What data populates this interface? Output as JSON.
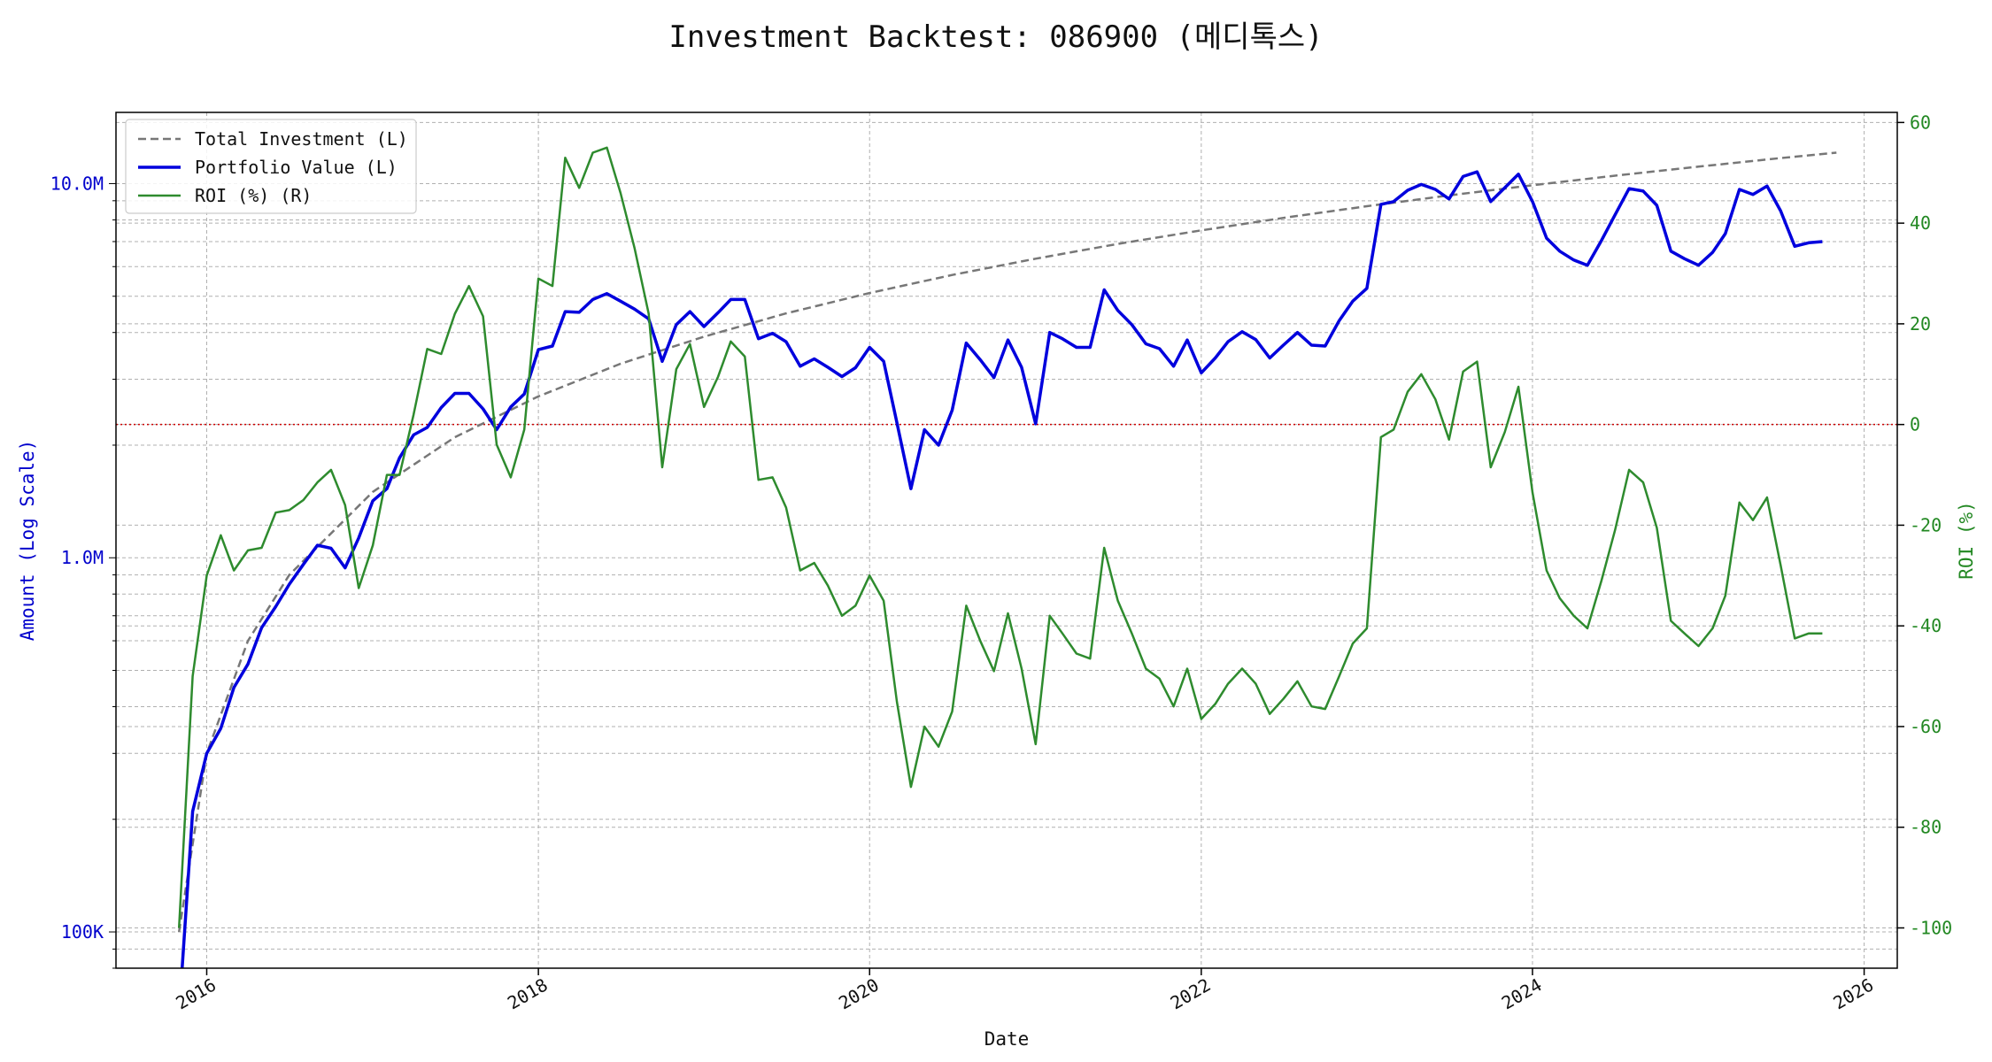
{
  "chart_data": {
    "type": "line",
    "title": "Investment Backtest: 086900 (메디톡스)",
    "xlabel": "Date",
    "ylabel_left": "Amount (Log Scale)",
    "ylabel_right": "ROI (%)",
    "x_ticks": [
      "2016",
      "2018",
      "2020",
      "2022",
      "2024",
      "2026"
    ],
    "y_left_scale": "log",
    "y_left_ticks": [
      "100K",
      "1.0M",
      "10.0M"
    ],
    "y_left_range": [
      80000,
      15500000
    ],
    "y_right_ticks": [
      "-100",
      "-80",
      "-60",
      "-40",
      "-20",
      "0",
      "20",
      "40",
      "60"
    ],
    "y_right_range": [
      -108,
      62
    ],
    "x_range": [
      "2015-06-15",
      "2026-03-15"
    ],
    "grid": true,
    "legend_position": "top-left",
    "zero_reference_line": {
      "axis": "right",
      "value": 0,
      "color": "#cc0000"
    },
    "colors": {
      "total": "#777777",
      "portfolio": "#0000dd",
      "roi": "#2e8b2e",
      "left_axis": "#0000cc",
      "right_axis": "#228822"
    },
    "series": [
      {
        "name": "Total Investment (L)",
        "axis": "left",
        "style": "dashed",
        "points": [
          [
            "2015-11-01",
            100000
          ],
          [
            "2016-01-01",
            300000
          ],
          [
            "2016-04-01",
            600000
          ],
          [
            "2016-07-01",
            900000
          ],
          [
            "2017-01-01",
            1500000
          ],
          [
            "2017-07-01",
            2100000
          ],
          [
            "2018-01-01",
            2700000
          ],
          [
            "2018-07-01",
            3300000
          ],
          [
            "2019-01-01",
            3900000
          ],
          [
            "2019-07-01",
            4500000
          ],
          [
            "2020-01-01",
            5100000
          ],
          [
            "2020-07-01",
            5700000
          ],
          [
            "2021-01-01",
            6300000
          ],
          [
            "2021-07-01",
            6900000
          ],
          [
            "2022-01-01",
            7500000
          ],
          [
            "2022-07-01",
            8100000
          ],
          [
            "2023-01-01",
            8700000
          ],
          [
            "2023-07-01",
            9300000
          ],
          [
            "2024-01-01",
            9900000
          ],
          [
            "2024-07-01",
            10500000
          ],
          [
            "2025-01-01",
            11100000
          ],
          [
            "2025-07-01",
            11700000
          ],
          [
            "2025-11-01",
            12100000
          ]
        ]
      },
      {
        "name": "Portfolio Value (L)",
        "axis": "left",
        "style": "solid",
        "points": [
          [
            "2015-11-01",
            60000
          ],
          [
            "2015-12-01",
            210000
          ],
          [
            "2016-01-01",
            300000
          ],
          [
            "2016-02-01",
            350000
          ],
          [
            "2016-03-01",
            450000
          ],
          [
            "2016-04-01",
            520000
          ],
          [
            "2016-05-01",
            650000
          ],
          [
            "2016-06-01",
            740000
          ],
          [
            "2016-07-01",
            850000
          ],
          [
            "2016-08-01",
            960000
          ],
          [
            "2016-09-01",
            1080000
          ],
          [
            "2016-10-01",
            1060000
          ],
          [
            "2016-11-01",
            940000
          ],
          [
            "2016-12-01",
            1130000
          ],
          [
            "2017-01-01",
            1420000
          ],
          [
            "2017-02-01",
            1530000
          ],
          [
            "2017-03-01",
            1850000
          ],
          [
            "2017-04-01",
            2130000
          ],
          [
            "2017-05-01",
            2230000
          ],
          [
            "2017-06-01",
            2520000
          ],
          [
            "2017-07-01",
            2750000
          ],
          [
            "2017-08-01",
            2750000
          ],
          [
            "2017-09-01",
            2500000
          ],
          [
            "2017-10-01",
            2200000
          ],
          [
            "2017-11-01",
            2530000
          ],
          [
            "2017-12-01",
            2740000
          ],
          [
            "2018-01-01",
            3600000
          ],
          [
            "2018-02-01",
            3680000
          ],
          [
            "2018-03-01",
            4550000
          ],
          [
            "2018-04-01",
            4530000
          ],
          [
            "2018-05-01",
            4900000
          ],
          [
            "2018-06-01",
            5080000
          ],
          [
            "2018-07-01",
            4850000
          ],
          [
            "2018-08-01",
            4620000
          ],
          [
            "2018-09-01",
            4350000
          ],
          [
            "2018-10-01",
            3350000
          ],
          [
            "2018-11-01",
            4200000
          ],
          [
            "2018-12-01",
            4550000
          ],
          [
            "2019-01-01",
            4150000
          ],
          [
            "2019-02-01",
            4520000
          ],
          [
            "2019-03-01",
            4900000
          ],
          [
            "2019-04-01",
            4900000
          ],
          [
            "2019-05-01",
            3850000
          ],
          [
            "2019-06-01",
            3980000
          ],
          [
            "2019-07-01",
            3780000
          ],
          [
            "2019-08-01",
            3250000
          ],
          [
            "2019-09-01",
            3400000
          ],
          [
            "2019-10-01",
            3230000
          ],
          [
            "2019-11-01",
            3050000
          ],
          [
            "2019-12-01",
            3220000
          ],
          [
            "2020-01-01",
            3650000
          ],
          [
            "2020-02-01",
            3350000
          ],
          [
            "2020-03-01",
            2300000
          ],
          [
            "2020-04-01",
            1530000
          ],
          [
            "2020-05-01",
            2200000
          ],
          [
            "2020-06-01",
            2000000
          ],
          [
            "2020-07-01",
            2480000
          ],
          [
            "2020-08-01",
            3750000
          ],
          [
            "2020-09-01",
            3380000
          ],
          [
            "2020-10-01",
            3030000
          ],
          [
            "2020-11-01",
            3820000
          ],
          [
            "2020-12-01",
            3230000
          ],
          [
            "2021-01-01",
            2280000
          ],
          [
            "2021-02-01",
            4000000
          ],
          [
            "2021-03-01",
            3850000
          ],
          [
            "2021-04-01",
            3650000
          ],
          [
            "2021-05-01",
            3650000
          ],
          [
            "2021-06-01",
            5200000
          ],
          [
            "2021-07-01",
            4580000
          ],
          [
            "2021-08-01",
            4200000
          ],
          [
            "2021-09-01",
            3730000
          ],
          [
            "2021-10-01",
            3620000
          ],
          [
            "2021-11-01",
            3250000
          ],
          [
            "2021-12-01",
            3820000
          ],
          [
            "2022-01-01",
            3120000
          ],
          [
            "2022-02-01",
            3420000
          ],
          [
            "2022-03-01",
            3780000
          ],
          [
            "2022-04-01",
            4020000
          ],
          [
            "2022-05-01",
            3830000
          ],
          [
            "2022-06-01",
            3420000
          ],
          [
            "2022-07-01",
            3700000
          ],
          [
            "2022-08-01",
            4000000
          ],
          [
            "2022-09-01",
            3700000
          ],
          [
            "2022-10-01",
            3680000
          ],
          [
            "2022-11-01",
            4300000
          ],
          [
            "2022-12-01",
            4850000
          ],
          [
            "2023-01-01",
            5250000
          ],
          [
            "2023-02-01",
            8800000
          ],
          [
            "2023-03-01",
            8950000
          ],
          [
            "2023-04-01",
            9600000
          ],
          [
            "2023-05-01",
            9950000
          ],
          [
            "2023-06-01",
            9650000
          ],
          [
            "2023-07-01",
            9100000
          ],
          [
            "2023-08-01",
            10450000
          ],
          [
            "2023-09-01",
            10750000
          ],
          [
            "2023-10-01",
            8950000
          ],
          [
            "2023-11-01",
            9750000
          ],
          [
            "2023-12-01",
            10600000
          ],
          [
            "2024-01-01",
            8950000
          ],
          [
            "2024-02-01",
            7150000
          ],
          [
            "2024-03-01",
            6600000
          ],
          [
            "2024-04-01",
            6250000
          ],
          [
            "2024-05-01",
            6050000
          ],
          [
            "2024-06-01",
            7050000
          ],
          [
            "2024-07-01",
            8250000
          ],
          [
            "2024-08-01",
            9700000
          ],
          [
            "2024-09-01",
            9550000
          ],
          [
            "2024-10-01",
            8750000
          ],
          [
            "2024-11-01",
            6600000
          ],
          [
            "2024-12-01",
            6300000
          ],
          [
            "2025-01-01",
            6050000
          ],
          [
            "2025-02-01",
            6550000
          ],
          [
            "2025-03-01",
            7350000
          ],
          [
            "2025-04-01",
            9650000
          ],
          [
            "2025-05-01",
            9350000
          ],
          [
            "2025-06-01",
            9850000
          ],
          [
            "2025-07-01",
            8450000
          ],
          [
            "2025-08-01",
            6800000
          ],
          [
            "2025-09-01",
            6950000
          ],
          [
            "2025-10-01",
            7000000
          ]
        ]
      },
      {
        "name": "ROI (%) (R)",
        "axis": "right",
        "style": "solid",
        "points": [
          [
            "2015-11-01",
            -100
          ],
          [
            "2015-12-01",
            -50
          ],
          [
            "2016-01-01",
            -30
          ],
          [
            "2016-02-01",
            -22
          ],
          [
            "2016-03-01",
            -29
          ],
          [
            "2016-04-01",
            -25
          ],
          [
            "2016-05-01",
            -24.5
          ],
          [
            "2016-06-01",
            -17.5
          ],
          [
            "2016-07-01",
            -17
          ],
          [
            "2016-08-01",
            -15
          ],
          [
            "2016-09-01",
            -11.5
          ],
          [
            "2016-10-01",
            -9
          ],
          [
            "2016-11-01",
            -16
          ],
          [
            "2016-12-01",
            -32.5
          ],
          [
            "2017-01-01",
            -24
          ],
          [
            "2017-02-01",
            -10
          ],
          [
            "2017-03-01",
            -10
          ],
          [
            "2017-04-01",
            2
          ],
          [
            "2017-05-01",
            15
          ],
          [
            "2017-06-01",
            14
          ],
          [
            "2017-07-01",
            22
          ],
          [
            "2017-08-01",
            27.5
          ],
          [
            "2017-09-01",
            21.5
          ],
          [
            "2017-10-01",
            -4
          ],
          [
            "2017-11-01",
            -10.5
          ],
          [
            "2017-12-01",
            -1
          ],
          [
            "2018-01-01",
            29
          ],
          [
            "2018-02-01",
            27.5
          ],
          [
            "2018-03-01",
            53
          ],
          [
            "2018-04-01",
            47
          ],
          [
            "2018-05-01",
            54
          ],
          [
            "2018-06-01",
            55
          ],
          [
            "2018-07-01",
            46
          ],
          [
            "2018-08-01",
            35
          ],
          [
            "2018-09-01",
            22
          ],
          [
            "2018-10-01",
            -8.5
          ],
          [
            "2018-11-01",
            11
          ],
          [
            "2018-12-01",
            16
          ],
          [
            "2019-01-01",
            3.5
          ],
          [
            "2019-02-01",
            9.5
          ],
          [
            "2019-03-01",
            16.5
          ],
          [
            "2019-04-01",
            13.5
          ],
          [
            "2019-05-01",
            -11
          ],
          [
            "2019-06-01",
            -10.5
          ],
          [
            "2019-07-01",
            -16.5
          ],
          [
            "2019-08-01",
            -29
          ],
          [
            "2019-09-01",
            -27.5
          ],
          [
            "2019-10-01",
            -32
          ],
          [
            "2019-11-01",
            -38
          ],
          [
            "2019-12-01",
            -36
          ],
          [
            "2020-01-01",
            -30
          ],
          [
            "2020-02-01",
            -35
          ],
          [
            "2020-03-01",
            -55
          ],
          [
            "2020-04-01",
            -72
          ],
          [
            "2020-05-01",
            -60
          ],
          [
            "2020-06-01",
            -64
          ],
          [
            "2020-07-01",
            -57
          ],
          [
            "2020-08-01",
            -36
          ],
          [
            "2020-09-01",
            -43
          ],
          [
            "2020-10-01",
            -49
          ],
          [
            "2020-11-01",
            -37.5
          ],
          [
            "2020-12-01",
            -48.5
          ],
          [
            "2021-01-01",
            -63.5
          ],
          [
            "2021-02-01",
            -38
          ],
          [
            "2021-03-01",
            -41.5
          ],
          [
            "2021-04-01",
            -45.5
          ],
          [
            "2021-05-01",
            -46.5
          ],
          [
            "2021-06-01",
            -24.5
          ],
          [
            "2021-07-01",
            -35
          ],
          [
            "2021-08-01",
            -41.5
          ],
          [
            "2021-09-01",
            -48.5
          ],
          [
            "2021-10-01",
            -50.5
          ],
          [
            "2021-11-01",
            -56
          ],
          [
            "2021-12-01",
            -48.5
          ],
          [
            "2022-01-01",
            -58.5
          ],
          [
            "2022-02-01",
            -55.5
          ],
          [
            "2022-03-01",
            -51.5
          ],
          [
            "2022-04-01",
            -48.5
          ],
          [
            "2022-05-01",
            -51.5
          ],
          [
            "2022-06-01",
            -57.5
          ],
          [
            "2022-07-01",
            -54.5
          ],
          [
            "2022-08-01",
            -51
          ],
          [
            "2022-09-01",
            -56
          ],
          [
            "2022-10-01",
            -56.5
          ],
          [
            "2022-11-01",
            -50
          ],
          [
            "2022-12-01",
            -43.5
          ],
          [
            "2023-01-01",
            -40.5
          ],
          [
            "2023-02-01",
            -2.5
          ],
          [
            "2023-03-01",
            -1
          ],
          [
            "2023-04-01",
            6.5
          ],
          [
            "2023-05-01",
            10
          ],
          [
            "2023-06-01",
            5
          ],
          [
            "2023-07-01",
            -3
          ],
          [
            "2023-08-01",
            10.5
          ],
          [
            "2023-09-01",
            12.5
          ],
          [
            "2023-10-01",
            -8.5
          ],
          [
            "2023-11-01",
            -1.5
          ],
          [
            "2023-12-01",
            7.5
          ],
          [
            "2024-01-01",
            -13.5
          ],
          [
            "2024-02-01",
            -29
          ],
          [
            "2024-03-01",
            -34.5
          ],
          [
            "2024-04-01",
            -38
          ],
          [
            "2024-05-01",
            -40.5
          ],
          [
            "2024-06-01",
            -31
          ],
          [
            "2024-07-01",
            -21
          ],
          [
            "2024-08-01",
            -9
          ],
          [
            "2024-09-01",
            -11.5
          ],
          [
            "2024-10-01",
            -20.5
          ],
          [
            "2024-11-01",
            -39
          ],
          [
            "2024-12-01",
            -41.5
          ],
          [
            "2025-01-01",
            -44
          ],
          [
            "2025-02-01",
            -40.5
          ],
          [
            "2025-03-01",
            -34
          ],
          [
            "2025-04-01",
            -15.5
          ],
          [
            "2025-05-01",
            -19
          ],
          [
            "2025-06-01",
            -14.5
          ],
          [
            "2025-07-01",
            -28
          ],
          [
            "2025-08-01",
            -42.5
          ],
          [
            "2025-09-01",
            -41.5
          ],
          [
            "2025-10-01",
            -41.5
          ]
        ]
      }
    ]
  }
}
